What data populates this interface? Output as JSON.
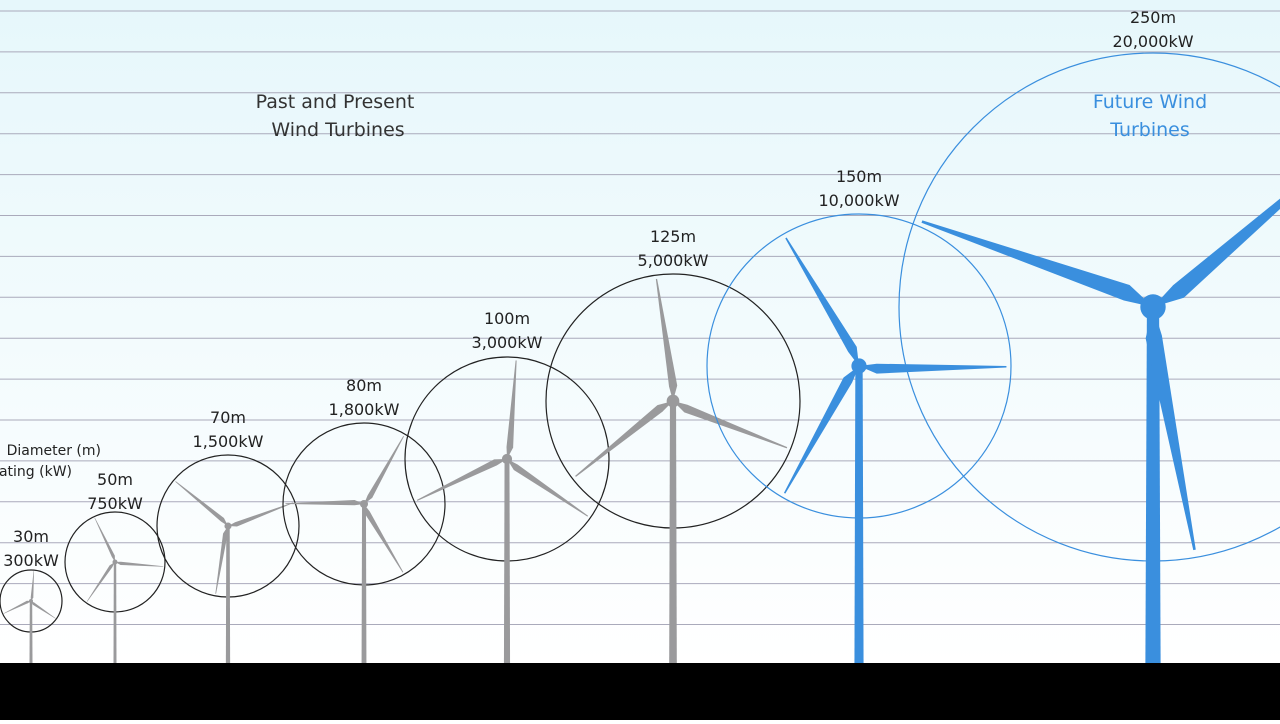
{
  "past_title": {
    "line1": "Past and Present",
    "line2": "Wind Turbines"
  },
  "future_title": {
    "line1": "Future Wind",
    "line2": "Turbines"
  },
  "legend": {
    "diameter": "Diameter (m)",
    "rating": "Rating (kW)"
  },
  "turbines": [
    {
      "diameter": "30m",
      "rating": "300kW"
    },
    {
      "diameter": "50m",
      "rating": "750kW"
    },
    {
      "diameter": "70m",
      "rating": "1,500kW"
    },
    {
      "diameter": "80m",
      "rating": "1,800kW"
    },
    {
      "diameter": "100m",
      "rating": "3,000kW"
    },
    {
      "diameter": "125m",
      "rating": "5,000kW"
    },
    {
      "diameter": "150m",
      "rating": "10,000kW"
    },
    {
      "diameter": "250m",
      "rating": "20,000kW"
    }
  ]
}
